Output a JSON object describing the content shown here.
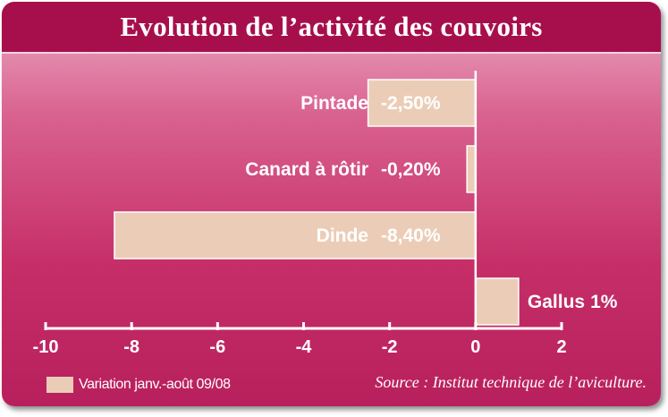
{
  "chart_data": {
    "type": "bar",
    "orientation": "horizontal",
    "title": "Evolution de l’activité des couvoirs",
    "categories": [
      "Pintade",
      "Canard à rôtir",
      "Dinde",
      "Gallus"
    ],
    "series": [
      {
        "name": "Variation janv.-août 09/08",
        "values": [
          -2.5,
          -0.2,
          -8.4,
          1.0
        ],
        "labels": [
          "-2,50%",
          "-0,20%",
          "-8,40%",
          "1%"
        ]
      }
    ],
    "xlim": [
      -10,
      2
    ],
    "xticks": [
      -10,
      -8,
      -6,
      -4,
      -2,
      0,
      2
    ],
    "xlabel": "",
    "ylabel": "",
    "grid": false,
    "legend": "bottom-left",
    "bar_color": "#ebcdb7",
    "background_color": "#c62e68",
    "title_band_color": "#a70f4c"
  },
  "source": "Source : Institut technique de l’aviculture."
}
